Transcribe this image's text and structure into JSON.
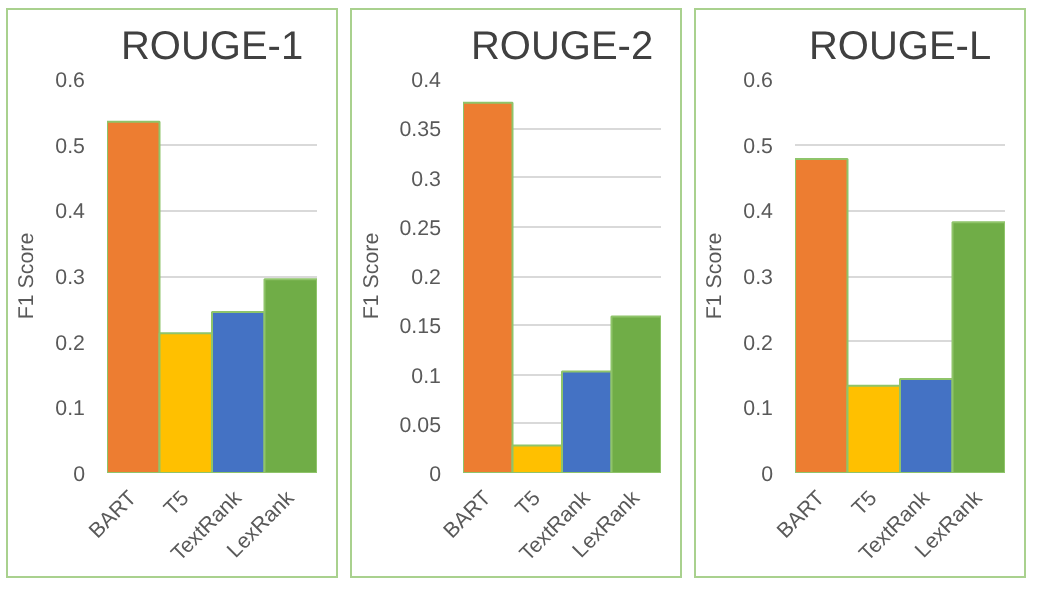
{
  "chart_data": [
    {
      "type": "bar",
      "title": "ROUGE-1",
      "ylabel": "F1 Score",
      "categories": [
        "BART",
        "T5",
        "TextRank",
        "LexRank"
      ],
      "values": [
        0.535,
        0.213,
        0.245,
        0.295
      ],
      "colors": [
        "#ed7d31",
        "#ffc000",
        "#4472c4",
        "#70ad47"
      ],
      "ylim": [
        0,
        0.6
      ],
      "yticks": [
        0,
        0.1,
        0.2,
        0.3,
        0.4,
        0.5,
        0.6
      ],
      "grid": "y"
    },
    {
      "type": "bar",
      "title": "ROUGE-2",
      "ylabel": "F1 Score",
      "categories": [
        "BART",
        "T5",
        "TextRank",
        "LexRank"
      ],
      "values": [
        0.376,
        0.028,
        0.103,
        0.159
      ],
      "colors": [
        "#ed7d31",
        "#ffc000",
        "#4472c4",
        "#70ad47"
      ],
      "ylim": [
        0,
        0.4
      ],
      "yticks": [
        0,
        0.05,
        0.1,
        0.15,
        0.2,
        0.25,
        0.3,
        0.35,
        0.4
      ],
      "grid": "y"
    },
    {
      "type": "bar",
      "title": "ROUGE-L",
      "ylabel": "F1 Score",
      "categories": [
        "BART",
        "T5",
        "TextRank",
        "LexRank"
      ],
      "values": [
        0.478,
        0.133,
        0.143,
        0.382
      ],
      "colors": [
        "#ed7d31",
        "#ffc000",
        "#4472c4",
        "#70ad47"
      ],
      "ylim": [
        0,
        0.6
      ],
      "yticks": [
        0,
        0.1,
        0.2,
        0.3,
        0.4,
        0.5,
        0.6
      ],
      "grid": "y"
    }
  ]
}
